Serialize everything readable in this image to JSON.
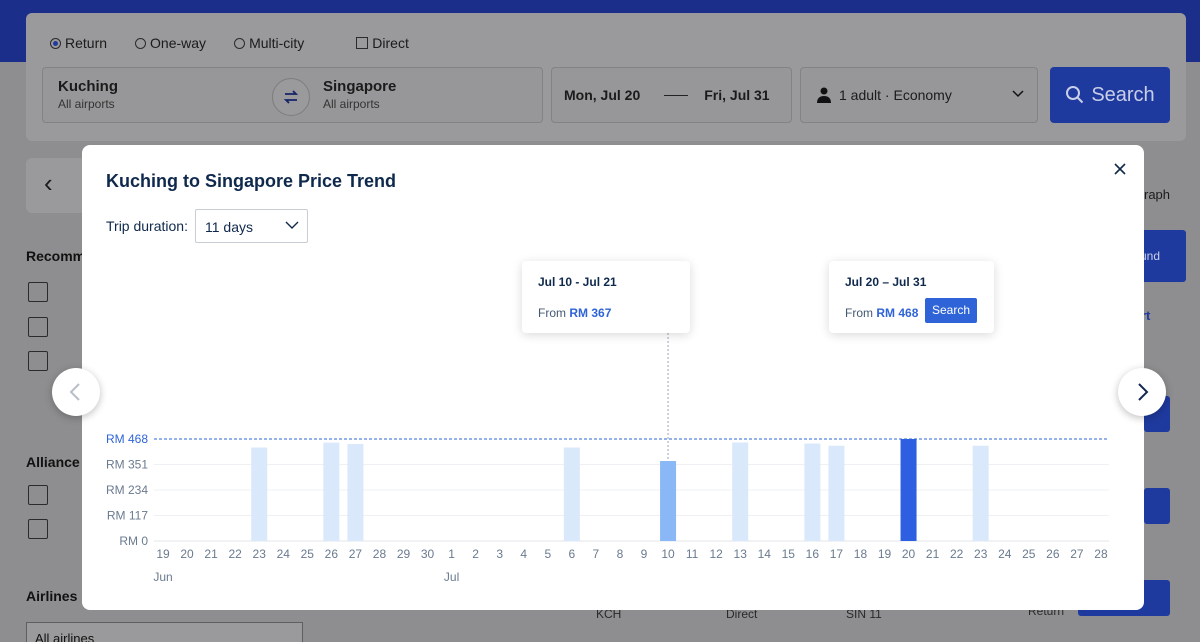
{
  "search": {
    "trip_types": [
      "Return",
      "One-way",
      "Multi-city"
    ],
    "direct_label": "Direct",
    "from": {
      "city": "Kuching",
      "sub": "All airports"
    },
    "to": {
      "city": "Singapore",
      "sub": "All airports"
    },
    "depart": "Mon, Jul 20",
    "return": "Fri, Jul 31",
    "passengers": "1 adult · Economy",
    "search_label": "Search"
  },
  "background": {
    "filter_recommended": "Recomme",
    "filter_alliance": "Alliance",
    "filter_airlines": "Airlines",
    "airlines_select": "All airlines",
    "graph_tab": "raph",
    "bg_labels": [
      "und",
      "rt",
      "KCH",
      "Direct",
      "SIN 11",
      "Return"
    ]
  },
  "modal": {
    "title": "Kuching to Singapore Price Trend",
    "duration_label": "Trip duration:",
    "duration_value": "11 days",
    "reference_label": "RM 468",
    "tooltip_a": {
      "dates": "Jul 10 - Jul 21",
      "from_label": "From",
      "price": "RM 367"
    },
    "tooltip_b": {
      "dates": "Jul 20 – Jul 31",
      "from_label": "From",
      "price": "RM 468",
      "search_label": "Search"
    }
  },
  "chart_data": {
    "type": "bar",
    "title": "Kuching to Singapore Price Trend",
    "categories": [
      "19",
      "20",
      "21",
      "22",
      "23",
      "24",
      "25",
      "26",
      "27",
      "28",
      "29",
      "30",
      "1",
      "2",
      "3",
      "4",
      "5",
      "6",
      "7",
      "8",
      "9",
      "10",
      "11",
      "12",
      "13",
      "14",
      "15",
      "16",
      "17",
      "18",
      "19",
      "20",
      "21",
      "22",
      "23",
      "24",
      "25",
      "26",
      "27",
      "28"
    ],
    "month_labels": [
      {
        "index": 0,
        "label": "Jun"
      },
      {
        "index": 12,
        "label": "Jul"
      }
    ],
    "values": [
      null,
      null,
      null,
      null,
      429,
      null,
      null,
      451,
      445,
      null,
      null,
      null,
      null,
      null,
      null,
      null,
      null,
      429,
      null,
      null,
      null,
      367,
      null,
      null,
      452,
      null,
      null,
      447,
      437,
      null,
      null,
      468,
      null,
      null,
      437,
      null,
      null,
      null,
      null,
      null
    ],
    "highlight": {
      "hover_index": 21,
      "selected_index": 31
    },
    "yticks": [
      "RM 0",
      "RM 117",
      "RM 234",
      "RM 351",
      "RM 468"
    ],
    "ylim": [
      0,
      468
    ],
    "reference_value": 468,
    "colors": {
      "bar": "#dae8fc",
      "hover": "#8ab8f6",
      "selected": "#2e5fe0",
      "reference": "#2e64d7"
    }
  }
}
